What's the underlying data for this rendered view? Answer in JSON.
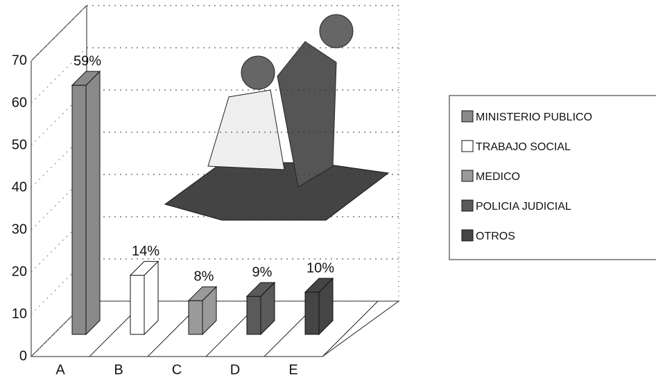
{
  "chart_data": {
    "type": "bar3d",
    "categories": [
      "A",
      "B",
      "C",
      "D",
      "E"
    ],
    "values": [
      59,
      14,
      8,
      9,
      10
    ],
    "value_labels": [
      "59%",
      "14%",
      "8%",
      "9%",
      "10%"
    ],
    "legend": [
      "MINISTERIO PUBLICO",
      "TRABAJO SOCIAL",
      "MEDICO",
      "POLICIA JUDICIAL",
      "OTROS"
    ],
    "colors": [
      "#8a8a8a",
      "#ffffff",
      "#9a9a9a",
      "#5a5a5a",
      "#454545"
    ],
    "ylim": [
      0,
      70
    ],
    "yticks": [
      0,
      10,
      20,
      30,
      40,
      50,
      60,
      70
    ],
    "grid": true
  }
}
